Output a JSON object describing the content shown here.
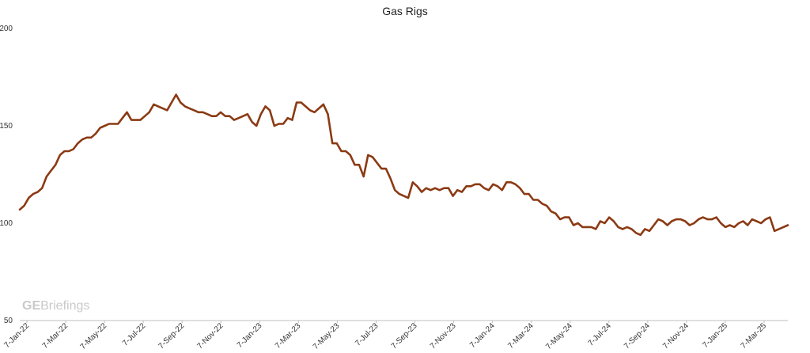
{
  "watermark": {
    "bold": "GE",
    "rest": "Briefings"
  },
  "chart_data": {
    "type": "line",
    "title": "Gas Rigs",
    "xlabel": "",
    "ylabel": "",
    "ylim": [
      50,
      200
    ],
    "yticks": [
      50,
      100,
      150,
      200
    ],
    "grid": false,
    "legend": "none",
    "line_color": "#8B3A14",
    "x_tick_labels": [
      "7-Jan-22",
      "7-Mar-22",
      "7-May-22",
      "7-Jul-22",
      "7-Sep-22",
      "7-Nov-22",
      "7-Jan-23",
      "7-Mar-23",
      "7-May-23",
      "7-Jul-23",
      "7-Sep-23",
      "7-Nov-23",
      "7-Jan-24",
      "7-Mar-24",
      "7-May-24",
      "7-Jul-24",
      "7-Sep-24",
      "7-Nov-24",
      "7-Jan-25",
      "7-Mar-25"
    ],
    "series": [
      {
        "values": [
          107,
          109,
          113,
          115,
          116,
          118,
          124,
          127,
          130,
          135,
          137,
          137,
          138,
          141,
          143,
          144,
          144,
          146,
          149,
          150,
          151,
          151,
          151,
          154,
          157,
          153,
          153,
          153,
          155,
          157,
          161,
          160,
          159,
          158,
          162,
          166,
          162,
          160,
          159,
          158,
          157,
          157,
          156,
          155,
          155,
          157,
          155,
          155,
          153,
          154,
          155,
          156,
          152,
          150,
          156,
          160,
          158,
          150,
          151,
          151,
          154,
          153,
          162,
          162,
          160,
          158,
          157,
          159,
          161,
          156,
          141,
          141,
          137,
          137,
          135,
          130,
          130,
          124,
          135,
          134,
          131,
          128,
          128,
          123,
          117,
          115,
          114,
          113,
          121,
          119,
          116,
          118,
          117,
          118,
          117,
          118,
          118,
          114,
          117,
          116,
          119,
          119,
          120,
          120,
          118,
          117,
          120,
          119,
          117,
          121,
          121,
          120,
          118,
          115,
          115,
          112,
          112,
          110,
          109,
          106,
          105,
          102,
          103,
          103,
          99,
          100,
          98,
          98,
          98,
          97,
          101,
          100,
          103,
          101,
          98,
          97,
          98,
          97,
          95,
          94,
          97,
          96,
          99,
          102,
          101,
          99,
          101,
          102,
          102,
          101,
          99,
          100,
          102,
          103,
          102,
          102,
          103,
          100,
          98,
          99,
          98,
          100,
          101,
          99,
          102,
          101,
          100,
          102,
          103,
          96,
          97,
          98,
          99
        ]
      }
    ]
  }
}
